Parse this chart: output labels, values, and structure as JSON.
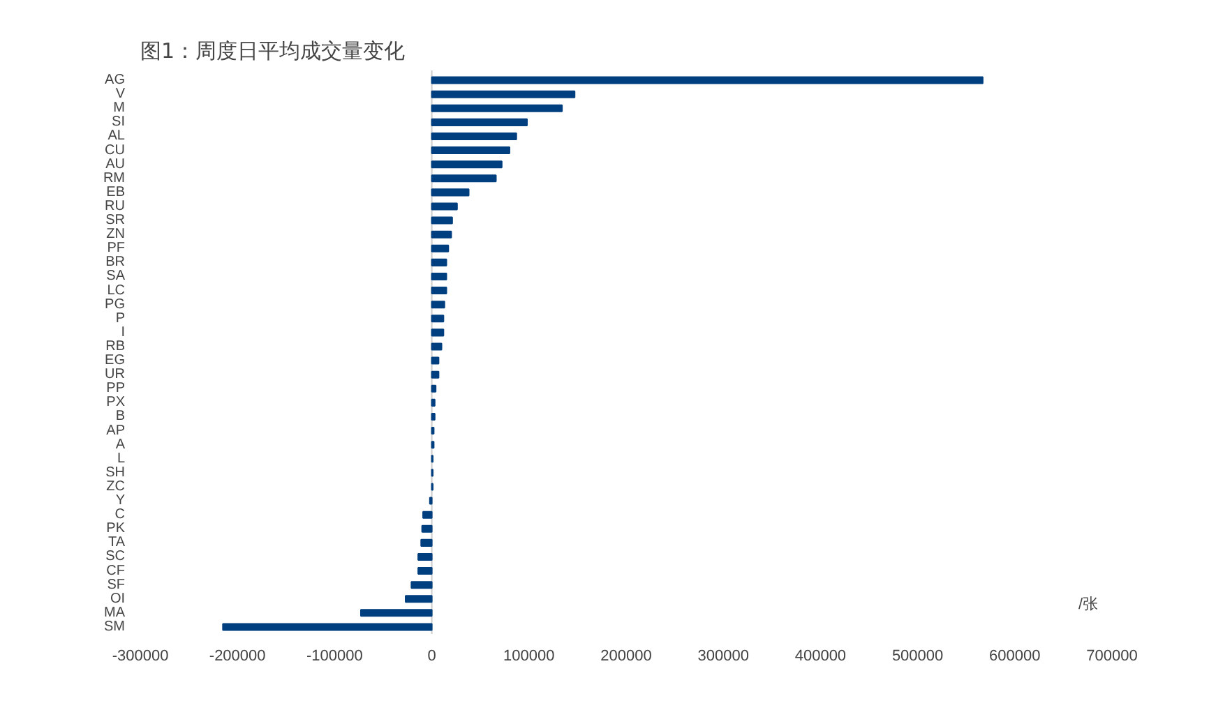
{
  "chart_data": {
    "type": "bar",
    "orientation": "horizontal",
    "title": "图1：周度日平均成交量变化",
    "categories": [
      "AG",
      "V",
      "M",
      "SI",
      "AL",
      "CU",
      "AU",
      "RM",
      "EB",
      "RU",
      "SR",
      "ZN",
      "PF",
      "BR",
      "SA",
      "LC",
      "PG",
      "P",
      "I",
      "RB",
      "EG",
      "UR",
      "PP",
      "PX",
      "B",
      "AP",
      "A",
      "L",
      "SH",
      "ZC",
      "Y",
      "C",
      "PK",
      "TA",
      "SC",
      "CF",
      "SF",
      "OI",
      "MA",
      "SM"
    ],
    "values": [
      567000,
      147000,
      134000,
      98000,
      87000,
      80000,
      72000,
      66000,
      38000,
      26000,
      21000,
      20000,
      17000,
      15000,
      15000,
      15000,
      13000,
      12000,
      12000,
      10000,
      7000,
      7000,
      4000,
      3000,
      3000,
      2000,
      2000,
      1000,
      1000,
      1000,
      -2000,
      -9000,
      -10000,
      -11000,
      -14000,
      -14000,
      -21000,
      -27000,
      -73000,
      -215000
    ],
    "color": "#003f7f",
    "xlim": [
      -300000,
      700000
    ],
    "xticks": [
      -300000,
      -200000,
      -100000,
      0,
      100000,
      200000,
      300000,
      400000,
      500000,
      600000,
      700000
    ],
    "annotations": [
      "/张"
    ]
  }
}
